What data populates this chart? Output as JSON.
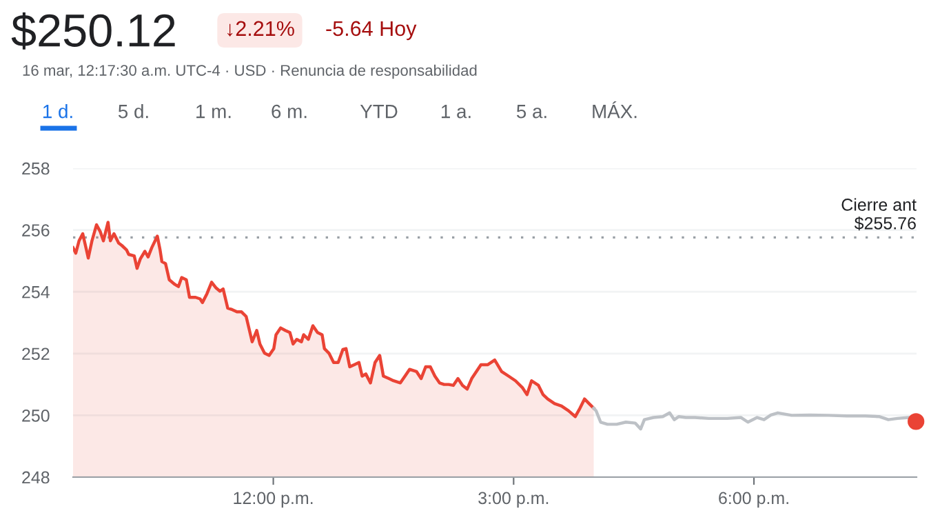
{
  "chart_data": {
    "type": "line",
    "title": "$250.12",
    "subtitle": "16 mar, 12:17:30 a.m. UTC-4 · USD · Renuncia de responsabilidad",
    "annotations": [
      "↓2.21%",
      "-5.64 Hoy",
      "1 d.",
      "5 d.",
      "1 m.",
      "6 m.",
      "YTD",
      "1 a.",
      "5 a.",
      "MÁX."
    ],
    "xlim": [
      9.5,
      20.03
    ],
    "xticks": [
      {
        "value": 12,
        "label": "12:00 p.m."
      },
      {
        "value": 15,
        "label": "3:00 p.m."
      },
      {
        "value": 18,
        "label": "6:00 p.m."
      }
    ],
    "ylim": [
      248,
      258
    ],
    "yticks": [
      248,
      250,
      252,
      254,
      256,
      258
    ],
    "grid": "y",
    "ref_lines": [
      {
        "axis": "y",
        "value": 255.76,
        "label": "Cierre ant\n$255.76",
        "color": "#9aa0a6",
        "line_style": "dotted"
      }
    ],
    "series": [
      {
        "type": "area",
        "color": "#ea4335",
        "x": [
          9.5,
          9.534,
          9.575,
          9.621,
          9.661,
          9.69,
          9.736,
          9.793,
          9.839,
          9.879,
          9.937,
          9.966,
          10.011,
          10.069,
          10.109,
          10.167,
          10.195,
          10.264,
          10.299,
          10.339,
          10.397,
          10.437,
          10.483,
          10.552,
          10.586,
          10.609,
          10.655,
          10.701,
          10.77,
          10.816,
          10.856,
          10.914,
          10.954,
          11.029,
          11.086,
          11.115,
          11.172,
          11.23,
          11.287,
          11.333,
          11.374,
          11.431,
          11.489,
          11.546,
          11.603,
          11.661,
          11.736,
          11.793,
          11.833,
          11.891,
          11.948,
          12.006,
          12.034,
          12.092,
          12.149,
          12.207,
          12.247,
          12.293,
          12.351,
          12.379,
          12.437,
          12.494,
          12.552,
          12.609,
          12.638,
          12.695,
          12.753,
          12.81,
          12.868,
          12.908,
          12.954,
          13.011,
          13.069,
          13.109,
          13.155,
          13.213,
          13.27,
          13.328,
          13.374,
          13.443,
          13.5,
          13.586,
          13.644,
          13.701,
          13.787,
          13.845,
          13.902,
          13.96,
          14.017,
          14.075,
          14.132,
          14.19,
          14.247,
          14.305,
          14.362,
          14.42,
          14.477,
          14.592,
          14.678,
          14.764,
          14.85,
          14.937,
          15.023,
          15.109,
          15.167,
          15.224,
          15.31,
          15.368,
          15.425,
          15.511,
          15.598,
          15.684,
          15.77,
          15.828,
          15.885,
          15.942,
          16.0
        ],
        "values": [
          255.43,
          255.25,
          255.65,
          255.88,
          255.43,
          255.09,
          255.65,
          256.17,
          255.95,
          255.65,
          256.25,
          255.65,
          255.88,
          255.58,
          255.5,
          255.36,
          255.21,
          255.16,
          254.76,
          255.06,
          255.31,
          255.13,
          255.43,
          255.8,
          255.36,
          254.98,
          254.91,
          254.39,
          254.24,
          254.17,
          254.46,
          254.39,
          253.82,
          253.82,
          253.77,
          253.65,
          253.94,
          254.31,
          254.12,
          254.02,
          254.09,
          253.47,
          253.42,
          253.35,
          253.35,
          253.2,
          252.38,
          252.75,
          252.31,
          252.01,
          251.94,
          252.16,
          252.61,
          252.83,
          252.75,
          252.68,
          252.31,
          252.46,
          252.38,
          252.61,
          252.46,
          252.9,
          252.68,
          252.61,
          252.16,
          252.01,
          251.71,
          251.71,
          252.13,
          252.16,
          251.57,
          251.64,
          251.71,
          251.27,
          251.34,
          251.05,
          251.71,
          251.94,
          251.27,
          251.19,
          251.12,
          251.05,
          251.27,
          251.49,
          251.42,
          251.19,
          251.57,
          251.57,
          251.27,
          251.05,
          251.0,
          251.0,
          250.97,
          251.19,
          250.97,
          250.85,
          251.19,
          251.64,
          251.64,
          251.79,
          251.42,
          251.27,
          251.12,
          250.9,
          250.67,
          251.12,
          250.97,
          250.67,
          250.53,
          250.38,
          250.3,
          250.15,
          249.96,
          250.23,
          250.53,
          250.38,
          250.23
        ]
      },
      {
        "color": "#bdc1c6",
        "x": [
          16.0,
          16.029,
          16.086,
          16.172,
          16.287,
          16.402,
          16.517,
          16.586,
          16.632,
          16.747,
          16.862,
          16.948,
          17.006,
          17.063,
          17.149,
          17.264,
          17.437,
          17.667,
          17.839,
          17.925,
          18.04,
          18.126,
          18.212,
          18.299,
          18.471,
          18.701,
          18.931,
          19.161,
          19.391,
          19.563,
          19.678,
          19.793,
          19.937,
          20.023
        ],
        "values": [
          250.23,
          250.15,
          249.78,
          249.71,
          249.71,
          249.78,
          249.75,
          249.56,
          249.86,
          249.93,
          249.96,
          250.08,
          249.86,
          249.96,
          249.93,
          249.93,
          249.9,
          249.9,
          249.93,
          249.78,
          249.93,
          249.86,
          250.01,
          250.08,
          250.0,
          250.01,
          250.0,
          249.98,
          249.98,
          249.96,
          249.86,
          249.9,
          249.93,
          249.8
        ]
      },
      {
        "type": "scatter",
        "color": "#ea4335",
        "x": [
          20.023
        ],
        "values": [
          249.8
        ]
      }
    ]
  }
}
